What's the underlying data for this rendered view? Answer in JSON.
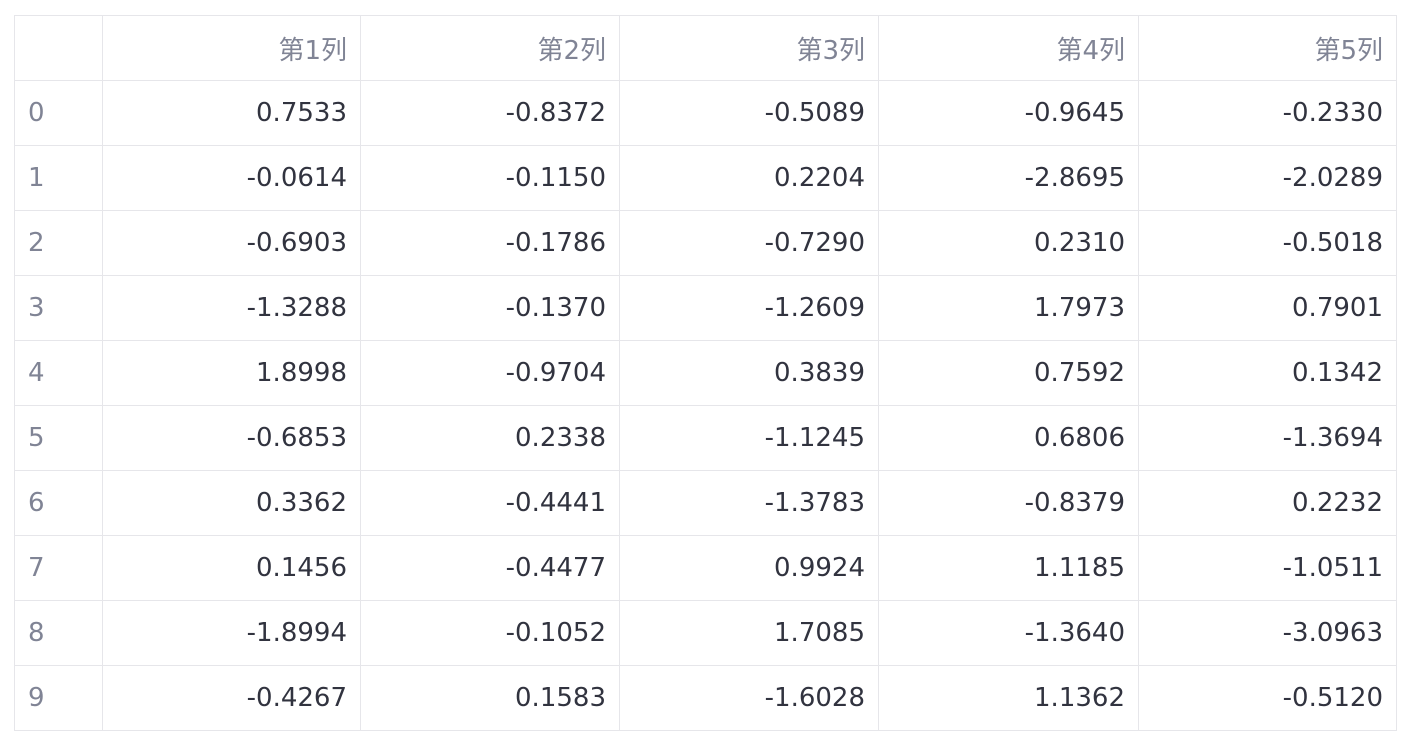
{
  "table": {
    "corner": "",
    "columns": [
      "第1列",
      "第2列",
      "第3列",
      "第4列",
      "第5列"
    ],
    "rows": [
      {
        "index": "0",
        "values": [
          "0.7533",
          "-0.8372",
          "-0.5089",
          "-0.9645",
          "-0.2330"
        ]
      },
      {
        "index": "1",
        "values": [
          "-0.0614",
          "-0.1150",
          "0.2204",
          "-2.8695",
          "-2.0289"
        ]
      },
      {
        "index": "2",
        "values": [
          "-0.6903",
          "-0.1786",
          "-0.7290",
          "0.2310",
          "-0.5018"
        ]
      },
      {
        "index": "3",
        "values": [
          "-1.3288",
          "-0.1370",
          "-1.2609",
          "1.7973",
          "0.7901"
        ]
      },
      {
        "index": "4",
        "values": [
          "1.8998",
          "-0.9704",
          "0.3839",
          "0.7592",
          "0.1342"
        ]
      },
      {
        "index": "5",
        "values": [
          "-0.6853",
          "0.2338",
          "-1.1245",
          "0.6806",
          "-1.3694"
        ]
      },
      {
        "index": "6",
        "values": [
          "0.3362",
          "-0.4441",
          "-1.3783",
          "-0.8379",
          "0.2232"
        ]
      },
      {
        "index": "7",
        "values": [
          "0.1456",
          "-0.4477",
          "0.9924",
          "1.1185",
          "-1.0511"
        ]
      },
      {
        "index": "8",
        "values": [
          "-1.8994",
          "-0.1052",
          "1.7085",
          "-1.3640",
          "-3.0963"
        ]
      },
      {
        "index": "9",
        "values": [
          "-0.4267",
          "0.1583",
          "-1.6028",
          "1.1362",
          "-0.5120"
        ]
      }
    ]
  }
}
